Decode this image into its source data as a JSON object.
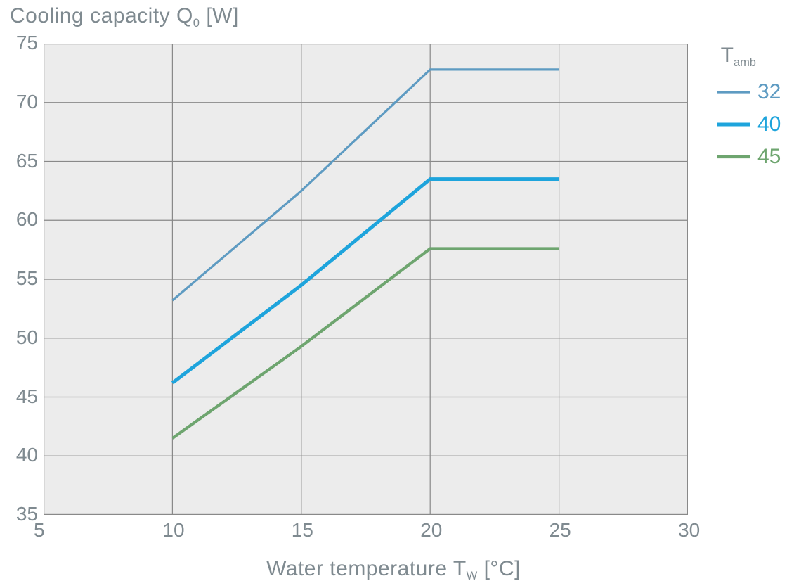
{
  "title_y": "Cooling capacity Q",
  "title_y_sub": "0",
  "title_y_unit": " [W]",
  "title_x": "Water temperature T",
  "title_x_sub": "W",
  "title_x_unit": " [°C]",
  "legend_title_main": "T",
  "legend_title_sub": "amb",
  "chart": {
    "type": "line",
    "plot_background": "#ececec",
    "page_background": "#ffffff",
    "grid_color": "#898989",
    "grid_stroke_width": 1.2,
    "border_color": "#898989",
    "border_stroke_width": 1.4,
    "title_color": "#7f8a90",
    "tick_label_color": "#7f8a90",
    "title_fontsize": 30,
    "tick_fontsize": 28,
    "x_axis": {
      "min": 5,
      "max": 30,
      "ticks": [
        5,
        10,
        15,
        20,
        25,
        30
      ]
    },
    "y_axis": {
      "min": 35,
      "max": 75,
      "ticks": [
        35,
        40,
        45,
        50,
        55,
        60,
        65,
        70,
        75
      ]
    },
    "series": [
      {
        "name": "32",
        "label": "32",
        "color": "#5e9bc2",
        "stroke_width": 3.2,
        "legend_stroke_width": 3.2,
        "points": [
          {
            "x": 10,
            "y": 53.2
          },
          {
            "x": 15,
            "y": 62.5
          },
          {
            "x": 20,
            "y": 72.8
          },
          {
            "x": 25,
            "y": 72.8
          }
        ]
      },
      {
        "name": "40",
        "label": "40",
        "color": "#1ea4dc",
        "stroke_width": 5.0,
        "legend_stroke_width": 5.0,
        "points": [
          {
            "x": 10,
            "y": 46.2
          },
          {
            "x": 15,
            "y": 54.5
          },
          {
            "x": 20,
            "y": 63.5
          },
          {
            "x": 25,
            "y": 63.5
          }
        ]
      },
      {
        "name": "45",
        "label": "45",
        "color": "#6ea56f",
        "stroke_width": 4.2,
        "legend_stroke_width": 4.2,
        "points": [
          {
            "x": 10,
            "y": 41.5
          },
          {
            "x": 15,
            "y": 49.3
          },
          {
            "x": 20,
            "y": 57.6
          },
          {
            "x": 25,
            "y": 57.6
          }
        ]
      }
    ]
  }
}
